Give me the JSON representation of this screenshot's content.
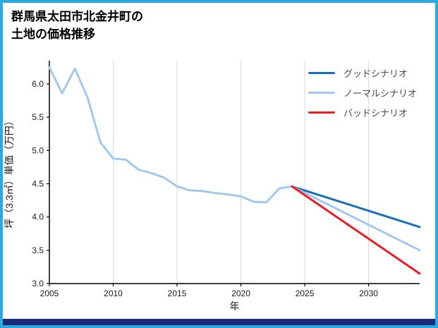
{
  "title_lines": [
    "群馬県太田市北金井町の",
    "土地の価格推移"
  ],
  "theme": {
    "border_color": "#29abe2",
    "footer_color": "#1a2b7a",
    "grid_color": "#d9d9d9",
    "axis_color": "#000000",
    "tick_text_color": "#1a1a1a",
    "legend_text_color": "#4a4a4a"
  },
  "chart_data": {
    "type": "line",
    "title": "群馬県太田市北金井町の土地の価格推移",
    "xlabel": "年",
    "ylabel": "坪（3.3㎡）単価（万円）",
    "xlim": [
      2005,
      2034
    ],
    "ylim": [
      3.0,
      6.35
    ],
    "xticks": [
      2005,
      2010,
      2015,
      2020,
      2025,
      2030
    ],
    "yticks": [
      3.0,
      3.5,
      4.0,
      4.5,
      5.0,
      5.5,
      6.0
    ],
    "grid": "vertical",
    "legend_position": "top-right",
    "series": [
      {
        "id": "historical",
        "name": "",
        "color": "#a1c9ee",
        "width": 3,
        "x": [
          2005,
          2006,
          2007,
          2008,
          2009,
          2010,
          2011,
          2012,
          2013,
          2014,
          2015,
          2016,
          2017,
          2018,
          2019,
          2020,
          2021,
          2022,
          2023,
          2024
        ],
        "y": [
          6.25,
          5.86,
          6.23,
          5.79,
          5.12,
          4.88,
          4.86,
          4.71,
          4.66,
          4.59,
          4.46,
          4.4,
          4.39,
          4.36,
          4.34,
          4.31,
          4.23,
          4.22,
          4.43,
          4.46
        ]
      },
      {
        "id": "good",
        "name": "グッドシナリオ",
        "color": "#1a6fba",
        "width": 3,
        "x": [
          2024,
          2034
        ],
        "y": [
          4.46,
          3.85
        ]
      },
      {
        "id": "normal",
        "name": "ノーマルシナリオ",
        "color": "#a1c9ee",
        "width": 3,
        "x": [
          2024,
          2034
        ],
        "y": [
          4.46,
          3.5
        ]
      },
      {
        "id": "bad",
        "name": "バッドシナリオ",
        "color": "#ed1c24",
        "width": 3,
        "x": [
          2024,
          2034
        ],
        "y": [
          4.46,
          3.15
        ]
      }
    ],
    "legend": [
      {
        "label": "グッドシナリオ",
        "color": "#1a6fba"
      },
      {
        "label": "ノーマルシナリオ",
        "color": "#a1c9ee"
      },
      {
        "label": "バッドシナリオ",
        "color": "#ed1c24"
      }
    ]
  }
}
